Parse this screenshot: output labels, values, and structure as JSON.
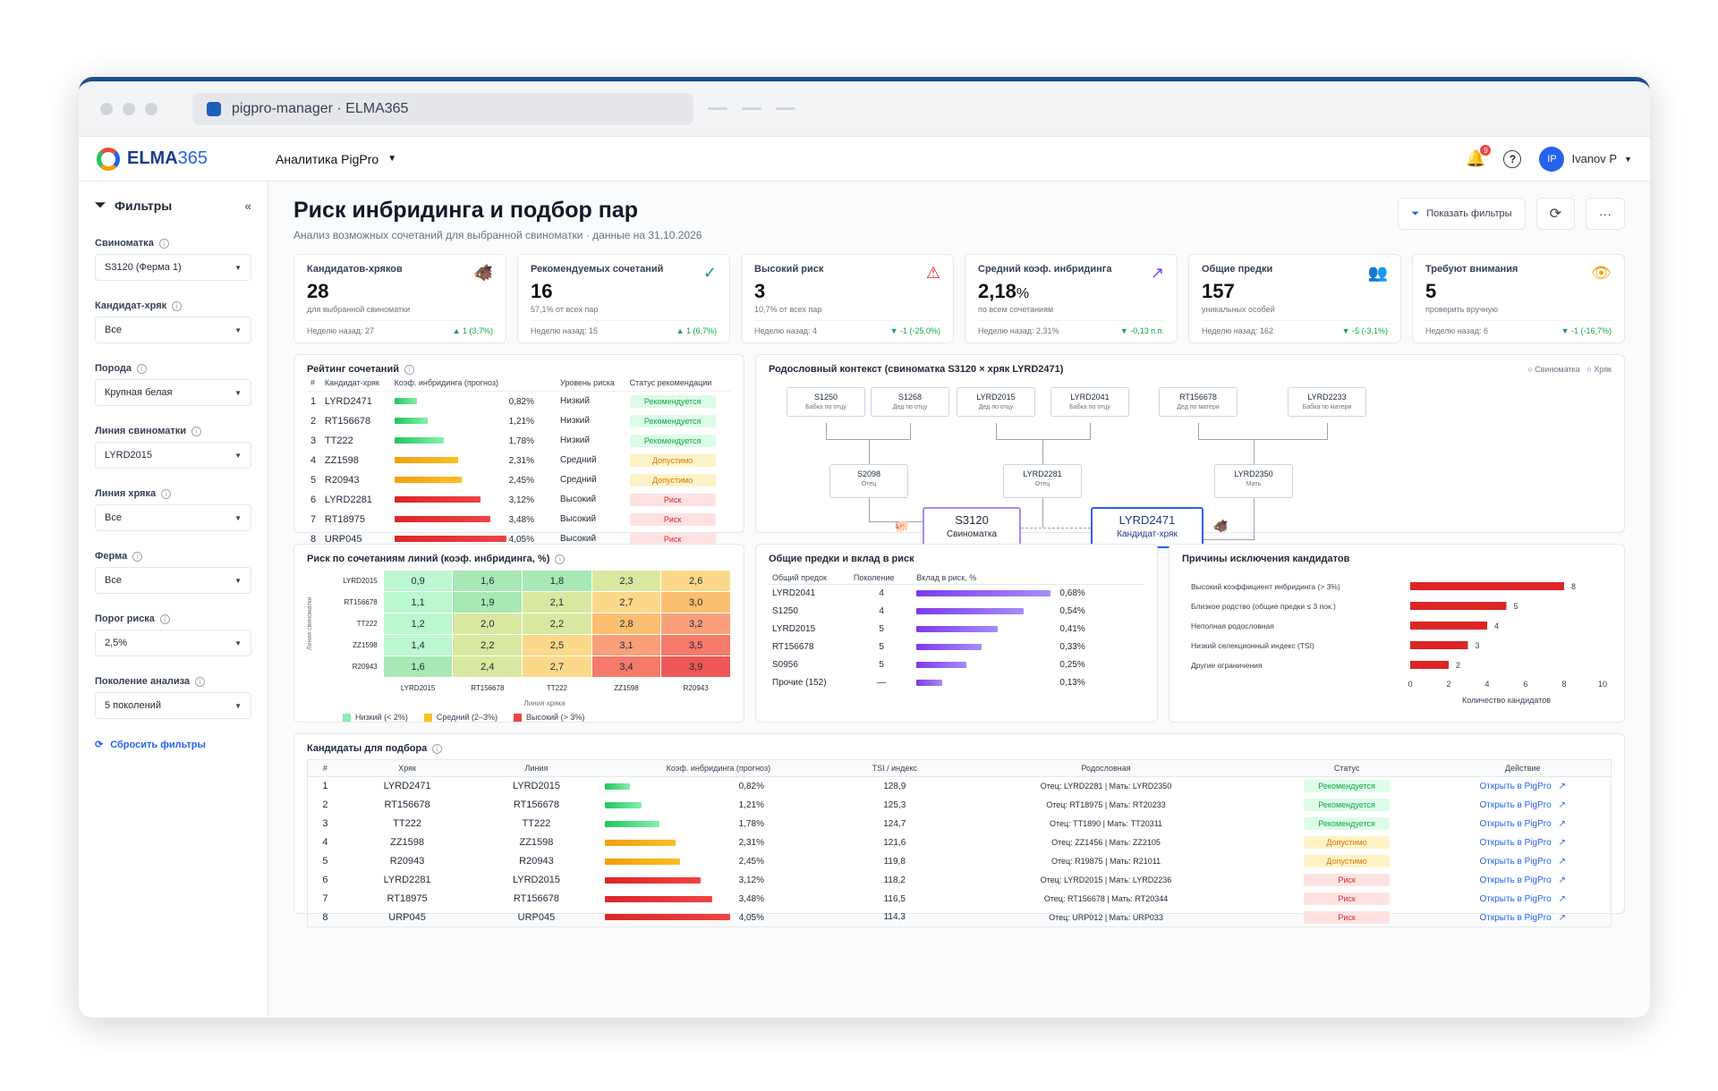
{
  "browser": {
    "tab_title": "pigpro-manager · ELMA365"
  },
  "topbar": {
    "logo": "ELMA",
    "logo_num": "365",
    "app": "Аналитика PigPro",
    "notif_count": "9",
    "user": "Ivanov P",
    "avatar": "IP"
  },
  "sidebar": {
    "title": "Фильтры",
    "filters": [
      {
        "label": "Свиноматка",
        "value": "S3120 (Ферма 1)"
      },
      {
        "label": "Кандидат-хряк",
        "value": "Все"
      },
      {
        "label": "Порода",
        "value": "Крупная белая"
      },
      {
        "label": "Линия свиноматки",
        "value": "LYRD2015"
      },
      {
        "label": "Линия хряка",
        "value": "Все"
      },
      {
        "label": "Ферма",
        "value": "Все"
      },
      {
        "label": "Порог риска",
        "value": "2,5%"
      },
      {
        "label": "Поколение анализа",
        "value": "5 поколений"
      }
    ],
    "reset": "Сбросить фильтры"
  },
  "page": {
    "title": "Риск инбридинга и подбор пар",
    "subtitle": "Анализ возможных сочетаний для выбранной свиноматки · данные на 31.10.2026",
    "show_filters": "Показать фильтры"
  },
  "kpis": [
    {
      "title": "Кандидатов-хряков",
      "value": "28",
      "unit": "",
      "sub": "для выбранной свиноматки",
      "prev": "Неделю назад: 27",
      "delta": "▲ 1 (3,7%)",
      "icon": "🐗",
      "icolor": "#2563eb"
    },
    {
      "title": "Рекомендуемых сочетаний",
      "value": "16",
      "unit": "",
      "sub": "57,1% от всех пар",
      "prev": "Неделю назад: 15",
      "delta": "▲ 1 (6,7%)",
      "icon": "✓",
      "icolor": "#16a34a"
    },
    {
      "title": "Высокий риск",
      "value": "3",
      "unit": "",
      "sub": "10,7% от всех пар",
      "prev": "Неделю назад: 4",
      "delta": "▼ -1 (-25,0%)",
      "icon": "⚠",
      "icolor": "#dc2626"
    },
    {
      "title": "Средний коэф. инбридинга",
      "value": "2,18",
      "unit": "%",
      "sub": "по всем сочетаниям",
      "prev": "Неделю назад: 2,31%",
      "delta": "▼ -0,13 п.п.",
      "icon": "↗",
      "icolor": "#7c3aed"
    },
    {
      "title": "Общие предки",
      "value": "157",
      "unit": "",
      "sub": "уникальных особей",
      "prev": "Неделю назад: 162",
      "delta": "▼ -5 (-3,1%)",
      "icon": "👥",
      "icolor": "#f59e0b"
    },
    {
      "title": "Требуют внимания",
      "value": "5",
      "unit": "",
      "sub": "проверить вручную",
      "prev": "Неделю назад: 6",
      "delta": "▼ -1 (-16,7%)",
      "icon": "👁",
      "icolor": "#f59e0b"
    }
  ],
  "rating": {
    "title": "Рейтинг сочетаний",
    "headers": [
      "#",
      "Кандидат-хряк",
      "Коэф. инбридинга (прогноз)",
      "Уровень риска",
      "Статус рекомендации"
    ],
    "rows": [
      {
        "n": "1",
        "name": "LYRD2471",
        "coef": "0,82%",
        "v": 0.82,
        "risk": "Низкий",
        "status": "Рекомендуется",
        "c": "g"
      },
      {
        "n": "2",
        "name": "RT156678",
        "coef": "1,21%",
        "v": 1.21,
        "risk": "Низкий",
        "status": "Рекомендуется",
        "c": "g"
      },
      {
        "n": "3",
        "name": "TT222",
        "coef": "1,78%",
        "v": 1.78,
        "risk": "Низкий",
        "status": "Рекомендуется",
        "c": "g"
      },
      {
        "n": "4",
        "name": "ZZ1598",
        "coef": "2,31%",
        "v": 2.31,
        "risk": "Средний",
        "status": "Допустимо",
        "c": "y"
      },
      {
        "n": "5",
        "name": "R20943",
        "coef": "2,45%",
        "v": 2.45,
        "risk": "Средний",
        "status": "Допустимо",
        "c": "y"
      },
      {
        "n": "6",
        "name": "LYRD2281",
        "coef": "3,12%",
        "v": 3.12,
        "risk": "Высокий",
        "status": "Риск",
        "c": "r"
      },
      {
        "n": "7",
        "name": "RT18975",
        "coef": "3,48%",
        "v": 3.48,
        "risk": "Высокий",
        "status": "Риск",
        "c": "r"
      },
      {
        "n": "8",
        "name": "URP045",
        "coef": "4,05%",
        "v": 4.05,
        "risk": "Высокий",
        "status": "Риск",
        "c": "r"
      }
    ]
  },
  "pedigree": {
    "title": "Родословный контекст (свиноматка S3120 × хряк LYRD2471)",
    "legend_sow": "Свиноматка",
    "legend_boar": "Хряк",
    "top": [
      {
        "id": "S1250",
        "role": "Бабка по отцу"
      },
      {
        "id": "S1268",
        "role": "Дед по отцу"
      },
      {
        "id": "LYRD2015",
        "role": "Дед по отцу"
      },
      {
        "id": "LYRD2041",
        "role": "Бабка по отцу"
      },
      {
        "id": "RT156678",
        "role": "Дед по матери"
      },
      {
        "id": "LYRD2233",
        "role": "Бабка по матери"
      }
    ],
    "mid": [
      {
        "id": "S2098",
        "role": "Отец"
      },
      {
        "id": "LYRD2281",
        "role": "Отец"
      },
      {
        "id": "LYRD2350",
        "role": "Мать"
      }
    ],
    "sow": {
      "id": "S3120",
      "role": "Свиноматка"
    },
    "boar": {
      "id": "LYRD2471",
      "role": "Кандидат-хряк"
    }
  },
  "heatmap": {
    "title": "Риск по сочетаниям линий (коэф. инбридинга, %)",
    "ylabel": "Линия свиноматки",
    "xlabel": "Линия хряка",
    "rows": [
      "LYRD2015",
      "RT156678",
      "TT222",
      "ZZ1598",
      "R20943"
    ],
    "cols": [
      "LYRD2015",
      "RT156678",
      "TT222",
      "ZZ1598",
      "R20943"
    ],
    "values": [
      [
        "0,9",
        "1,6",
        "1,8",
        "2,3",
        "2,6"
      ],
      [
        "1,1",
        "1,9",
        "2,1",
        "2,7",
        "3,0"
      ],
      [
        "1,2",
        "2,0",
        "2,2",
        "2,8",
        "3,2"
      ],
      [
        "1,4",
        "2,2",
        "2,5",
        "3,1",
        "3,5"
      ],
      [
        "1,6",
        "2,4",
        "2,7",
        "3,4",
        "3,9"
      ]
    ],
    "legend": [
      "Низкий (< 2%)",
      "Средний (2–3%)",
      "Высокий (> 3%)"
    ]
  },
  "ancestors": {
    "title": "Общие предки и вклад в риск",
    "headers": [
      "Общий предок",
      "Поколение",
      "Вклад в риск, %"
    ],
    "rows": [
      {
        "name": "LYRD2041",
        "gen": "4",
        "val": "0,68%",
        "v": 0.68
      },
      {
        "name": "S1250",
        "gen": "4",
        "val": "0,54%",
        "v": 0.54
      },
      {
        "name": "LYRD2015",
        "gen": "5",
        "val": "0,41%",
        "v": 0.41
      },
      {
        "name": "RT156678",
        "gen": "5",
        "val": "0,33%",
        "v": 0.33
      },
      {
        "name": "S0956",
        "gen": "5",
        "val": "0,25%",
        "v": 0.25
      },
      {
        "name": "Прочие (152)",
        "gen": "—",
        "val": "0,13%",
        "v": 0.13
      }
    ]
  },
  "chart_data": {
    "type": "bar",
    "title": "Причины исключения кандидатов",
    "xlabel": "Количество кандидатов",
    "xlim": [
      0,
      10
    ],
    "ticks": [
      "0",
      "2",
      "4",
      "6",
      "8",
      "10"
    ],
    "categories": [
      "Высокий коэффициент инбридинга (> 3%)",
      "Близкое родство (общие предки ≤ 3 пок.)",
      "Неполная родословная",
      "Низкий селекционный индекс (TSI)",
      "Другие ограничения"
    ],
    "values": [
      8,
      5,
      4,
      3,
      2
    ]
  },
  "candidates": {
    "title": "Кандидаты для подбора",
    "headers": [
      "#",
      "Хряк",
      "Линия",
      "Коэф. инбридинга (прогноз)",
      "TSI / индекс",
      "Родословная",
      "Статус",
      "Действие"
    ],
    "rows": [
      {
        "n": "1",
        "boar": "LYRD2471",
        "line": "LYRD2015",
        "coef": "0,82%",
        "v": 0.82,
        "tsi": "128,9",
        "ped": "Отец: LYRD2281 | Мать: LYRD2350",
        "status": "Рекомендуется",
        "c": "g",
        "act": "Открыть в PigPro"
      },
      {
        "n": "2",
        "boar": "RT156678",
        "line": "RT156678",
        "coef": "1,21%",
        "v": 1.21,
        "tsi": "125,3",
        "ped": "Отец: RT18975 | Мать: RT20233",
        "status": "Рекомендуется",
        "c": "g",
        "act": "Открыть в PigPro"
      },
      {
        "n": "3",
        "boar": "TT222",
        "line": "TT222",
        "coef": "1,78%",
        "v": 1.78,
        "tsi": "124,7",
        "ped": "Отец: TT1890 | Мать: TT20311",
        "status": "Рекомендуется",
        "c": "g",
        "act": "Открыть в PigPro"
      },
      {
        "n": "4",
        "boar": "ZZ1598",
        "line": "ZZ1598",
        "coef": "2,31%",
        "v": 2.31,
        "tsi": "121,6",
        "ped": "Отец: ZZ1456 | Мать: ZZ2105",
        "status": "Допустимо",
        "c": "y",
        "act": "Открыть в PigPro"
      },
      {
        "n": "5",
        "boar": "R20943",
        "line": "R20943",
        "coef": "2,45%",
        "v": 2.45,
        "tsi": "119,8",
        "ped": "Отец: R19875 | Мать: R21011",
        "status": "Допустимо",
        "c": "y",
        "act": "Открыть в PigPro"
      },
      {
        "n": "6",
        "boar": "LYRD2281",
        "line": "LYRD2015",
        "coef": "3,12%",
        "v": 3.12,
        "tsi": "118,2",
        "ped": "Отец: LYRD2015 | Мать: LYRD2236",
        "status": "Риск",
        "c": "r",
        "act": "Открыть в PigPro"
      },
      {
        "n": "7",
        "boar": "RT18975",
        "line": "RT156678",
        "coef": "3,48%",
        "v": 3.48,
        "tsi": "116,5",
        "ped": "Отец: RT156678 | Мать: RT20344",
        "status": "Риск",
        "c": "r",
        "act": "Открыть в PigPro"
      },
      {
        "n": "8",
        "boar": "URP045",
        "line": "URP045",
        "coef": "4,05%",
        "v": 4.05,
        "tsi": "114,3",
        "ped": "Отец: URP012 | Мать: URP033",
        "status": "Риск",
        "c": "r",
        "act": "Открыть в PigPro"
      }
    ]
  }
}
